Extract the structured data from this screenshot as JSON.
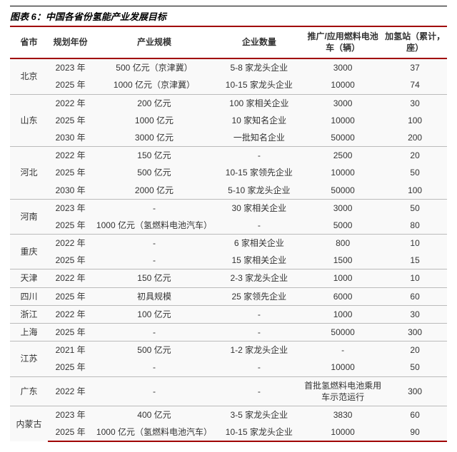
{
  "theme": {
    "accent": "#a00000",
    "row_bg": "#f9f9f9",
    "sep": "#bbbbbb",
    "text": "#333333",
    "title_color": "#000000"
  },
  "title": "图表 6：中国各省份氢能产业发展目标",
  "columns": [
    "省市",
    "规划年份",
    "产业规模",
    "企业数量",
    "推广/应用燃料电池车（辆）",
    "加氢站（累计，座）"
  ],
  "provinces": [
    {
      "name": "北京",
      "rows": [
        {
          "year": "2023 年",
          "scale": "500 亿元（京津冀）",
          "firms": "5-8 家龙头企业",
          "fcv": "3000",
          "stations": "37"
        },
        {
          "year": "2025 年",
          "scale": "1000 亿元（京津冀）",
          "firms": "10-15 家龙头企业",
          "fcv": "10000",
          "stations": "74"
        }
      ]
    },
    {
      "name": "山东",
      "rows": [
        {
          "year": "2022 年",
          "scale": "200 亿元",
          "firms": "100 家相关企业",
          "fcv": "3000",
          "stations": "30"
        },
        {
          "year": "2025 年",
          "scale": "1000 亿元",
          "firms": "10 家知名企业",
          "fcv": "10000",
          "stations": "100"
        },
        {
          "year": "2030 年",
          "scale": "3000 亿元",
          "firms": "一批知名企业",
          "fcv": "50000",
          "stations": "200"
        }
      ]
    },
    {
      "name": "河北",
      "rows": [
        {
          "year": "2022 年",
          "scale": "150 亿元",
          "firms": "-",
          "fcv": "2500",
          "stations": "20"
        },
        {
          "year": "2025 年",
          "scale": "500 亿元",
          "firms": "10-15 家领先企业",
          "fcv": "10000",
          "stations": "50"
        },
        {
          "year": "2030 年",
          "scale": "2000 亿元",
          "firms": "5-10 家龙头企业",
          "fcv": "50000",
          "stations": "100"
        }
      ]
    },
    {
      "name": "河南",
      "rows": [
        {
          "year": "2023 年",
          "scale": "-",
          "firms": "30 家相关企业",
          "fcv": "3000",
          "stations": "50"
        },
        {
          "year": "2025 年",
          "scale": "1000 亿元（氢燃料电池汽车）",
          "firms": "-",
          "fcv": "5000",
          "stations": "80"
        }
      ]
    },
    {
      "name": "重庆",
      "rows": [
        {
          "year": "2022 年",
          "scale": "-",
          "firms": "6 家相关企业",
          "fcv": "800",
          "stations": "10"
        },
        {
          "year": "2025 年",
          "scale": "-",
          "firms": "15 家相关企业",
          "fcv": "1500",
          "stations": "15"
        }
      ]
    },
    {
      "name": "天津",
      "rows": [
        {
          "year": "2022 年",
          "scale": "150 亿元",
          "firms": "2-3 家龙头企业",
          "fcv": "1000",
          "stations": "10"
        }
      ]
    },
    {
      "name": "四川",
      "rows": [
        {
          "year": "2025 年",
          "scale": "初具规模",
          "firms": "25 家领先企业",
          "fcv": "6000",
          "stations": "60"
        }
      ]
    },
    {
      "name": "浙江",
      "rows": [
        {
          "year": "2022 年",
          "scale": "100 亿元",
          "firms": "-",
          "fcv": "1000",
          "stations": "30"
        }
      ]
    },
    {
      "name": "上海",
      "rows": [
        {
          "year": "2025 年",
          "scale": "-",
          "firms": "-",
          "fcv": "50000",
          "stations": "300"
        }
      ]
    },
    {
      "name": "江苏",
      "rows": [
        {
          "year": "2021 年",
          "scale": "500 亿元",
          "firms": "1-2 家龙头企业",
          "fcv": "-",
          "stations": "20"
        },
        {
          "year": "2025 年",
          "scale": "-",
          "firms": "-",
          "fcv": "10000",
          "stations": "50"
        }
      ]
    },
    {
      "name": "广东",
      "rows": [
        {
          "year": "2022 年",
          "scale": "-",
          "firms": "-",
          "fcv": "首批氢燃料电池乘用车示范运行",
          "stations": "300"
        }
      ]
    },
    {
      "name": "内蒙古",
      "rows": [
        {
          "year": "2023 年",
          "scale": "400 亿元",
          "firms": "3-5 家龙头企业",
          "fcv": "3830",
          "stations": "60"
        },
        {
          "year": "2025 年",
          "scale": "1000 亿元（氢燃料电池汽车）",
          "firms": "10-15 家龙头企业",
          "fcv": "10000",
          "stations": "90"
        }
      ]
    }
  ]
}
